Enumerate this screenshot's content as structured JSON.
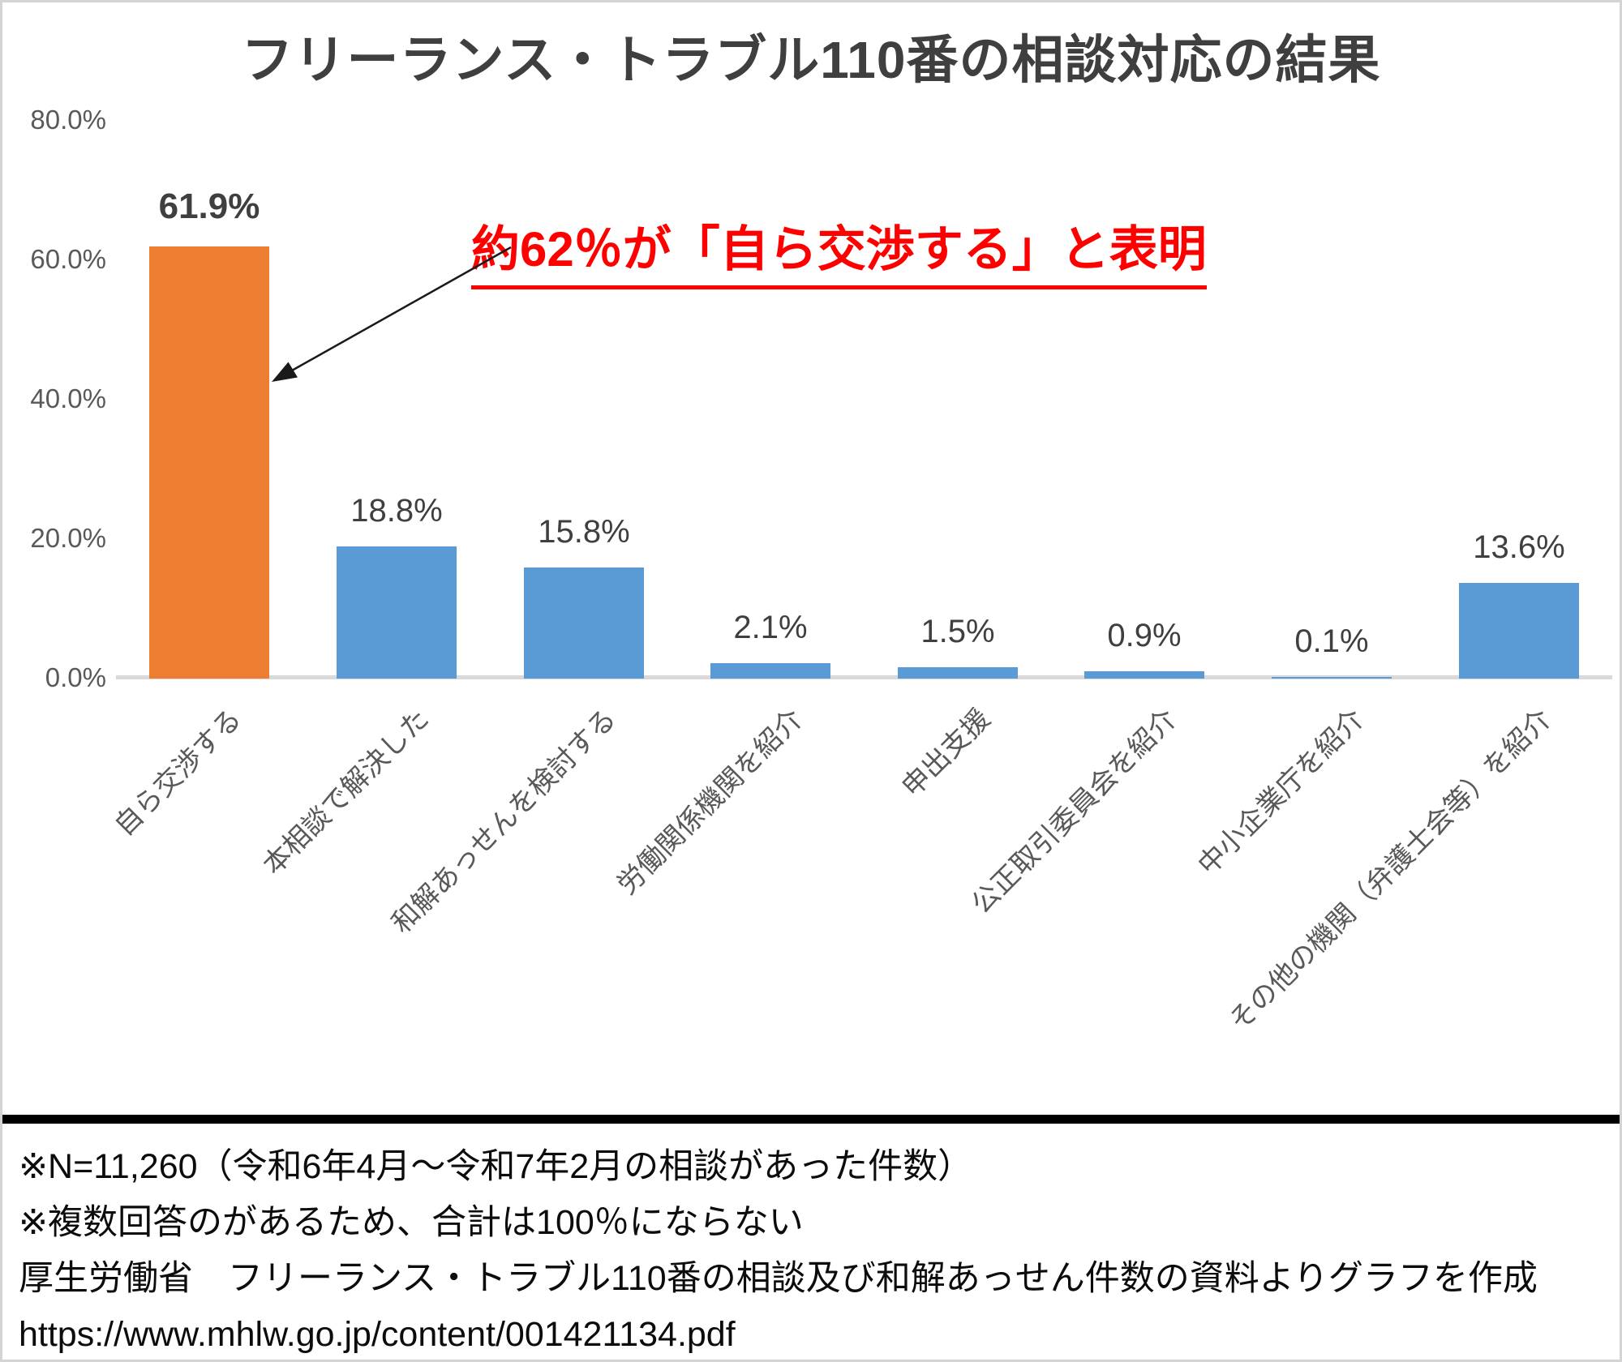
{
  "chart_data": {
    "type": "bar",
    "title": "フリーランス・トラブル110番の相談対応の結果",
    "categories": [
      "自ら交渉する",
      "本相談で解決した",
      "和解あっせんを検討する",
      "労働関係機関を紹介",
      "申出支援",
      "公正取引委員会を紹介",
      "中小企業庁を紹介",
      "その他の機関（弁護士会等）を紹介"
    ],
    "values": [
      61.9,
      18.8,
      15.8,
      2.1,
      1.5,
      0.9,
      0.1,
      13.6
    ],
    "labels": [
      "61.9%",
      "18.8%",
      "15.8%",
      "2.1%",
      "1.5%",
      "0.9%",
      "0.1%",
      "13.6%"
    ],
    "highlight_index": 0,
    "bar_color_default": "#5b9bd5",
    "bar_color_highlight": "#ed7d31",
    "ylim": [
      0,
      80
    ],
    "ytick_values": [
      0,
      20,
      40,
      60,
      80
    ],
    "ytick_labels": [
      "0.0%",
      "20.0%",
      "40.0%",
      "60.0%",
      "80.0%"
    ],
    "xlabel": "",
    "ylabel": "",
    "grid": false,
    "legend": false,
    "annotation": "約62％が「自ら交渉する」と表明"
  },
  "colors": {
    "annotation_red": "#ff0000",
    "axis_line_gray": "#d9d9d9",
    "title_gray": "#3f3f3f",
    "label_gray": "#595959"
  },
  "footer": {
    "lines": [
      "※N=11,260（令和6年4月～令和7年2月の相談があった件数）",
      "※複数回答のがあるため、合計は100％にならない",
      "厚生労働省　フリーランス・トラブル110番の相談及び和解あっせん件数の資料よりグラフを作成",
      "https://www.mhlw.go.jp/content/001421134.pdf"
    ]
  }
}
